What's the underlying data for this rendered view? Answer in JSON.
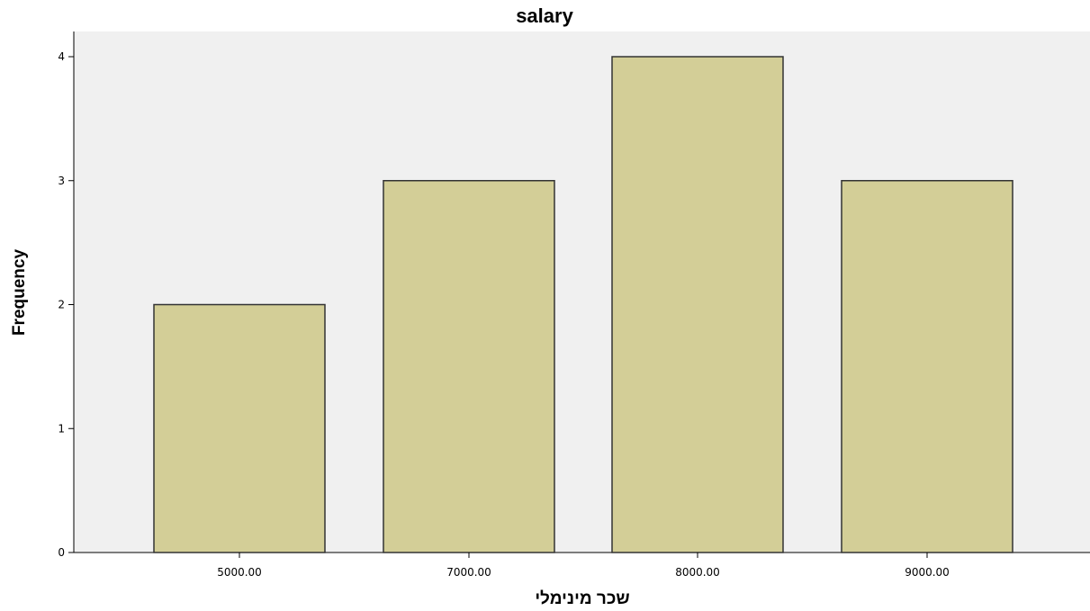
{
  "chart_data": {
    "type": "bar",
    "title": "salary",
    "xlabel": "שכר מינימלי",
    "ylabel": "Frequency",
    "categories": [
      "5000.00",
      "7000.00",
      "8000.00",
      "9000.00"
    ],
    "values": [
      2,
      3,
      4,
      3
    ],
    "ylim": [
      0,
      4
    ],
    "yticks": [
      "0",
      "1",
      "2",
      "3",
      "4"
    ],
    "grid": false,
    "legend": "none"
  },
  "colors": {
    "plot_background": "#f0f0f0",
    "bar_fill": "#d3ce97",
    "bar_stroke": "#333333"
  }
}
